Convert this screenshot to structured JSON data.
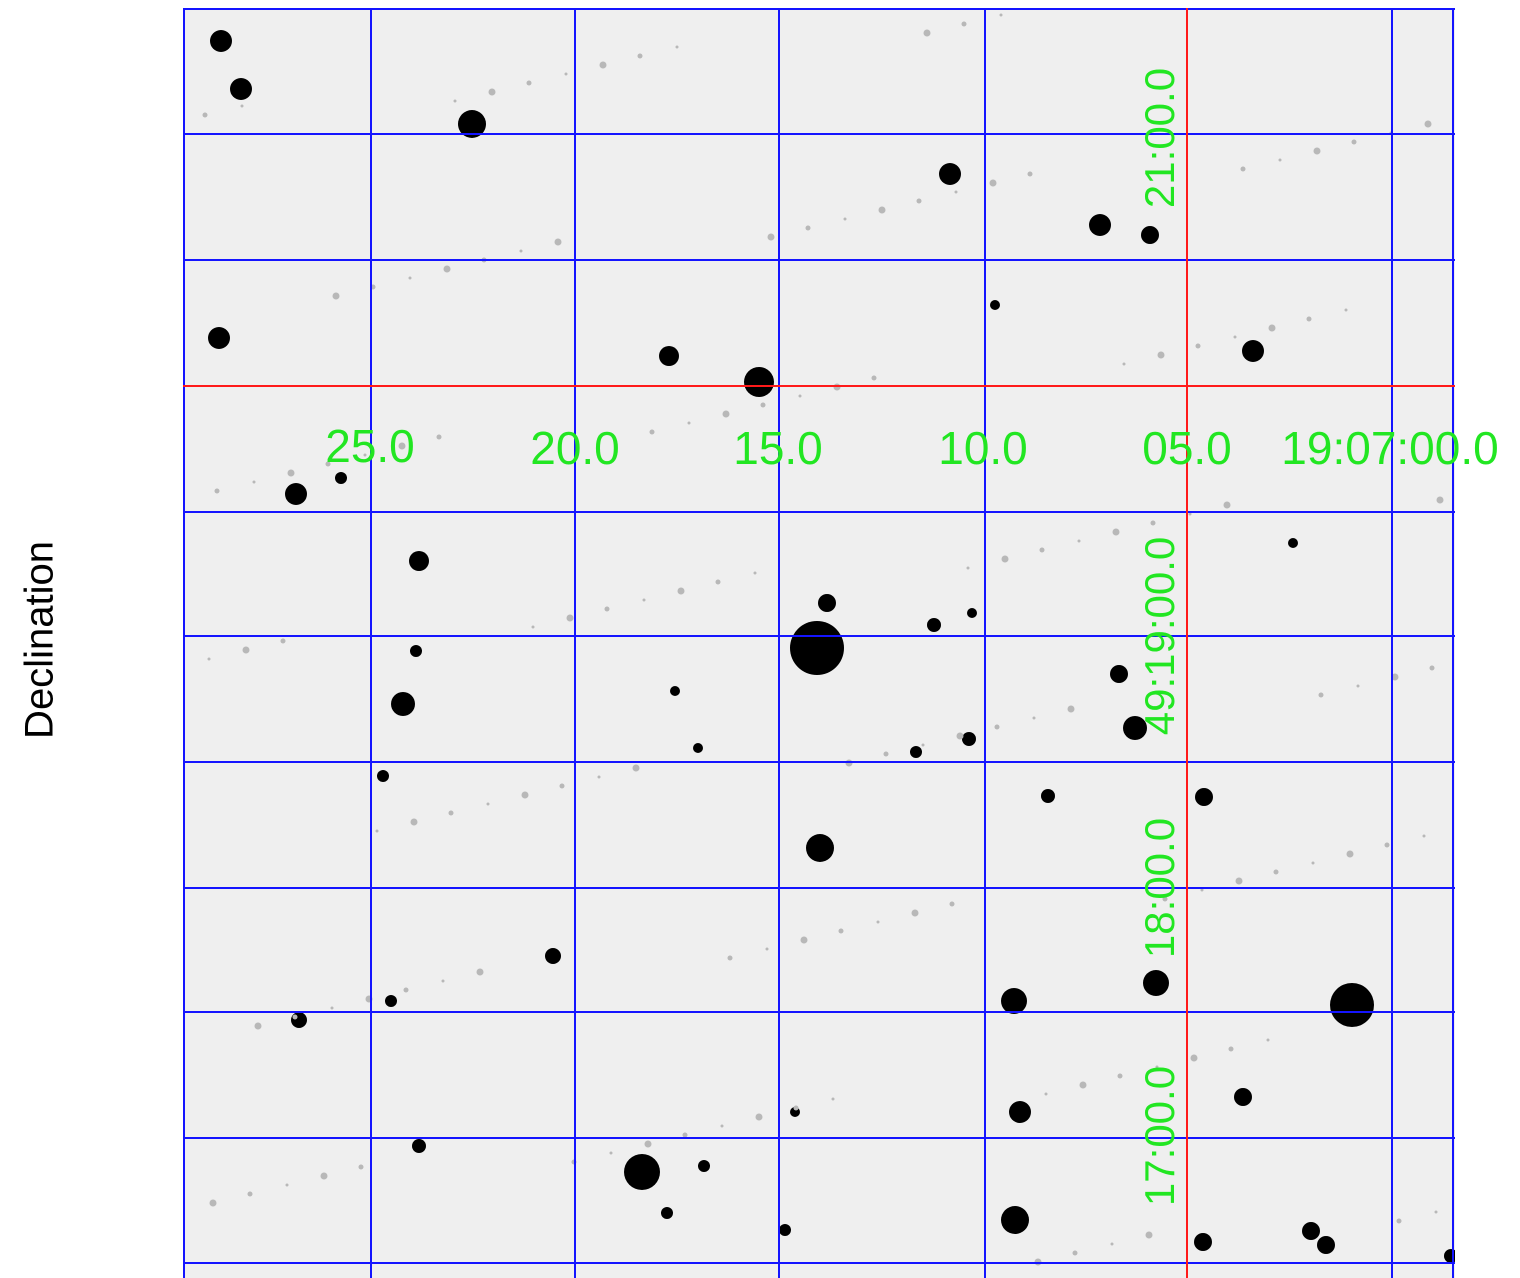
{
  "figure": {
    "y_axis_label": "Declination",
    "ra_tick_labels": [
      "25.0",
      "20.0",
      "15.0",
      "10.0",
      "05.0",
      "19:07:00.0"
    ],
    "dec_tick_labels": [
      "21:00.0",
      "49:19:00.0",
      "18:00.0",
      "17:00.0"
    ]
  },
  "colors": {
    "grid": "#1414ff",
    "ref_axes": "#ff1a1a",
    "labels": "#22e622",
    "sky_background": "#efefef",
    "stars": "#000000"
  }
}
